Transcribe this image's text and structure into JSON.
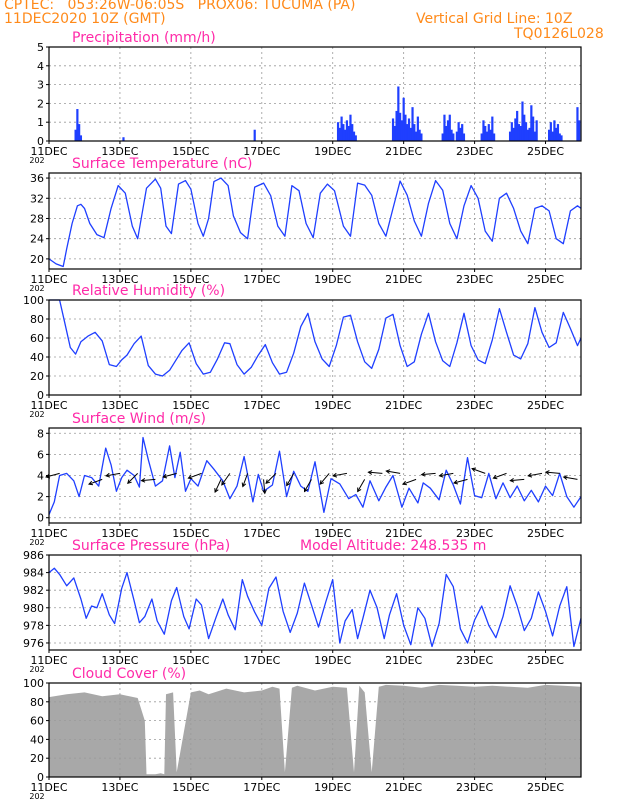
{
  "header": {
    "left_line1": "CPTEC:   053:26W-06:05S   PROX06: TUCUMA (PA)",
    "left_line2": "11DEC2020 10Z (GMT)",
    "right_line1": "Vertical Grid Line: 10Z",
    "right_line2": "TQ0126L028",
    "text_color": "#ff8a1a"
  },
  "theme": {
    "line_color": "#1f3fff",
    "title_color": "#ff2aa8",
    "arrow_color": "#000000",
    "cloud_color": "#a8a8a8",
    "grid_color": "#9a9a9a"
  },
  "x_axis": {
    "ticks": [
      "11DEC",
      "13DEC",
      "15DEC",
      "17DEC",
      "19DEC",
      "21DEC",
      "23DEC",
      "25DEC"
    ],
    "tick_days": [
      0,
      2,
      4,
      6,
      8,
      10,
      12,
      14
    ],
    "range_days": [
      0,
      15
    ],
    "year_label": "202"
  },
  "panels": {
    "precip": {
      "title": "Precipitation (mm/h)",
      "yticks": [
        "0",
        "1",
        "2",
        "3",
        "4",
        "5"
      ],
      "ytick_vals": [
        0,
        1,
        2,
        3,
        4,
        5
      ],
      "ylim": [
        0,
        5
      ]
    },
    "temp": {
      "title": "Surface Temperature (nC)",
      "yticks": [
        "20",
        "24",
        "28",
        "32",
        "36"
      ],
      "ytick_vals": [
        20,
        24,
        28,
        32,
        36
      ],
      "ylim": [
        18,
        37
      ]
    },
    "rh": {
      "title": "Relative Humidity (%)",
      "yticks": [
        "0",
        "20",
        "40",
        "60",
        "80",
        "100"
      ],
      "ytick_vals": [
        0,
        20,
        40,
        60,
        80,
        100
      ],
      "ylim": [
        0,
        100
      ]
    },
    "wind": {
      "title": "Surface Wind (m/s)",
      "yticks": [
        "0",
        "2",
        "4",
        "6",
        "8"
      ],
      "ytick_vals": [
        0,
        2,
        4,
        6,
        8
      ],
      "ylim": [
        -0.5,
        8.5
      ]
    },
    "pres": {
      "title": "Surface Pressure (hPa)",
      "subtitle": "Model Altitude: 248.535 m",
      "yticks": [
        "976",
        "978",
        "980",
        "982",
        "984",
        "986"
      ],
      "ytick_vals": [
        976,
        978,
        980,
        982,
        984,
        986
      ],
      "ylim": [
        975.2,
        986
      ]
    },
    "cloud": {
      "title": "Cloud Cover (%)",
      "yticks": [
        "0",
        "20",
        "40",
        "60",
        "80",
        "100"
      ],
      "ytick_vals": [
        0,
        20,
        40,
        60,
        80,
        100
      ],
      "ylim": [
        0,
        100
      ]
    }
  },
  "chart_data": [
    {
      "type": "bar",
      "title": "Precipitation (mm/h)",
      "ylim": [
        0,
        5
      ],
      "x_unit": "days since 11DEC 10Z",
      "x": [
        0.75,
        0.8,
        0.85,
        0.9,
        2.1,
        5.8,
        8.15,
        8.2,
        8.25,
        8.3,
        8.35,
        8.4,
        8.45,
        8.5,
        8.55,
        8.6,
        8.65,
        9.7,
        9.75,
        9.8,
        9.85,
        9.9,
        9.95,
        10.0,
        10.05,
        10.1,
        10.15,
        10.2,
        10.25,
        10.3,
        10.35,
        10.4,
        10.45,
        10.5,
        11.1,
        11.15,
        11.2,
        11.25,
        11.3,
        11.35,
        11.4,
        11.5,
        11.55,
        11.6,
        11.65,
        11.7,
        12.2,
        12.25,
        12.3,
        12.35,
        12.4,
        12.45,
        12.5,
        12.55,
        13.0,
        13.05,
        13.1,
        13.15,
        13.2,
        13.25,
        13.3,
        13.35,
        13.4,
        13.45,
        13.5,
        13.55,
        13.6,
        13.65,
        13.7,
        13.75,
        14.1,
        14.15,
        14.2,
        14.25,
        14.3,
        14.35,
        14.4,
        14.45,
        14.9,
        14.95
      ],
      "values": [
        0.6,
        1.7,
        0.9,
        0.3,
        0.2,
        0.6,
        1.0,
        0.7,
        1.3,
        0.9,
        0.6,
        1.1,
        0.8,
        1.4,
        0.9,
        0.5,
        0.3,
        1.2,
        0.8,
        1.6,
        2.9,
        1.5,
        1.1,
        2.3,
        1.4,
        0.9,
        1.2,
        0.7,
        1.8,
        0.9,
        0.5,
        1.3,
        0.6,
        0.4,
        0.4,
        1.4,
        0.8,
        1.1,
        1.4,
        0.6,
        0.4,
        0.5,
        1.0,
        0.7,
        0.9,
        0.4,
        0.4,
        1.1,
        0.8,
        0.5,
        0.9,
        0.6,
        1.3,
        0.4,
        0.5,
        1.0,
        0.7,
        1.2,
        1.6,
        0.9,
        0.8,
        2.1,
        1.4,
        1.0,
        0.6,
        0.7,
        1.9,
        1.3,
        0.5,
        1.1,
        0.6,
        1.0,
        0.5,
        1.1,
        0.7,
        0.9,
        0.4,
        0.3,
        1.8,
        1.1
      ]
    },
    {
      "type": "line",
      "title": "Surface Temperature (nC)",
      "ylim": [
        18,
        37
      ],
      "x": [
        0,
        0.2,
        0.4,
        0.5,
        0.65,
        0.8,
        0.9,
        1.0,
        1.15,
        1.35,
        1.55,
        1.75,
        1.95,
        2.15,
        2.35,
        2.5,
        2.75,
        3.0,
        3.15,
        3.3,
        3.45,
        3.65,
        3.85,
        4.0,
        4.2,
        4.35,
        4.5,
        4.65,
        4.85,
        5.05,
        5.2,
        5.4,
        5.6,
        5.8,
        6.05,
        6.25,
        6.45,
        6.65,
        6.85,
        7.05,
        7.25,
        7.45,
        7.65,
        7.85,
        8.05,
        8.3,
        8.5,
        8.7,
        8.9,
        9.1,
        9.3,
        9.5,
        9.7,
        9.9,
        10.1,
        10.3,
        10.5,
        10.7,
        10.9,
        11.1,
        11.3,
        11.5,
        11.7,
        11.9,
        12.1,
        12.3,
        12.5,
        12.7,
        12.9,
        13.1,
        13.3,
        13.5,
        13.7,
        13.9,
        14.1,
        14.3,
        14.5,
        14.7,
        14.9,
        15.0
      ],
      "values": [
        20,
        19,
        18.5,
        22,
        27,
        30.5,
        30.8,
        30,
        27,
        24.8,
        24.2,
        30,
        34.5,
        33,
        26.5,
        24,
        34,
        35.8,
        34,
        26.5,
        25,
        34.8,
        35.5,
        33.8,
        27,
        24.5,
        28,
        35.3,
        36,
        34.5,
        28.5,
        25.2,
        24,
        34.2,
        35,
        32.5,
        26.5,
        24.5,
        34.5,
        33.5,
        27,
        24.2,
        33,
        34.8,
        33.5,
        26.5,
        24.5,
        35,
        34.6,
        32.6,
        27,
        24.5,
        30,
        35.4,
        32.6,
        27.5,
        24.5,
        31,
        35.5,
        33.6,
        27,
        24,
        30.5,
        34.5,
        32,
        25.5,
        23.5,
        32,
        33,
        30,
        25.5,
        23,
        30,
        30.5,
        29.5,
        24,
        23,
        29.5,
        30.5,
        30
      ]
    },
    {
      "type": "line",
      "title": "Relative Humidity (%)",
      "ylim": [
        0,
        100
      ],
      "x": [
        0,
        0.3,
        0.45,
        0.6,
        0.75,
        0.9,
        1.1,
        1.3,
        1.5,
        1.7,
        1.9,
        2.05,
        2.2,
        2.4,
        2.6,
        2.8,
        3.0,
        3.2,
        3.4,
        3.55,
        3.75,
        3.95,
        4.15,
        4.35,
        4.55,
        4.75,
        4.95,
        5.1,
        5.3,
        5.5,
        5.7,
        5.9,
        6.1,
        6.3,
        6.5,
        6.7,
        6.9,
        7.1,
        7.3,
        7.5,
        7.7,
        7.9,
        8.1,
        8.3,
        8.5,
        8.7,
        8.9,
        9.1,
        9.3,
        9.5,
        9.7,
        9.9,
        10.1,
        10.3,
        10.5,
        10.7,
        10.9,
        11.1,
        11.3,
        11.5,
        11.7,
        11.9,
        12.1,
        12.3,
        12.5,
        12.7,
        12.9,
        13.1,
        13.3,
        13.5,
        13.7,
        13.9,
        14.1,
        14.3,
        14.5,
        14.7,
        14.9,
        15.0
      ],
      "values": [
        100,
        100,
        75,
        50,
        43,
        56,
        62,
        66,
        57,
        32,
        30,
        37,
        42,
        54,
        62,
        31,
        22,
        20,
        26,
        35,
        47,
        55,
        33,
        22,
        24,
        38,
        55,
        54,
        32,
        22,
        29,
        42,
        53,
        34,
        22,
        24,
        44,
        72,
        86,
        56,
        38,
        30,
        52,
        82,
        84,
        56,
        35,
        28,
        48,
        81,
        85,
        52,
        30,
        35,
        64,
        86,
        56,
        36,
        30,
        55,
        86,
        52,
        37,
        33,
        58,
        91,
        66,
        42,
        38,
        54,
        92,
        66,
        50,
        55,
        87,
        70,
        52,
        60
      ]
    },
    {
      "type": "line",
      "title": "Surface Wind (m/s)",
      "ylim": [
        -0.5,
        8.5
      ],
      "x": [
        0,
        0.15,
        0.3,
        0.5,
        0.7,
        0.85,
        1.0,
        1.2,
        1.4,
        1.6,
        1.75,
        1.9,
        2.05,
        2.2,
        2.4,
        2.55,
        2.65,
        2.8,
        3.0,
        3.2,
        3.4,
        3.55,
        3.7,
        3.85,
        4.0,
        4.2,
        4.45,
        4.65,
        4.9,
        5.1,
        5.3,
        5.5,
        5.75,
        5.9,
        6.05,
        6.3,
        6.5,
        6.7,
        6.9,
        7.1,
        7.3,
        7.5,
        7.75,
        7.95,
        8.2,
        8.45,
        8.65,
        8.85,
        9.05,
        9.3,
        9.5,
        9.7,
        9.95,
        10.15,
        10.4,
        10.55,
        10.75,
        11.0,
        11.2,
        11.4,
        11.6,
        11.8,
        12.0,
        12.2,
        12.4,
        12.6,
        12.8,
        13.0,
        13.2,
        13.4,
        13.6,
        13.8,
        14.0,
        14.2,
        14.4,
        14.6,
        14.8,
        15.0
      ],
      "values": [
        0.3,
        1.5,
        4.0,
        4.2,
        3.5,
        2.0,
        4.0,
        3.8,
        3.0,
        6.6,
        5.0,
        2.5,
        3.8,
        4.5,
        4.0,
        2.9,
        7.6,
        5.5,
        3.0,
        3.5,
        6.8,
        3.8,
        6.2,
        2.5,
        3.7,
        3.0,
        5.4,
        4.6,
        3.5,
        1.8,
        3.0,
        5.8,
        1.5,
        4.1,
        2.5,
        3.1,
        6.3,
        2.0,
        4.4,
        3.0,
        2.5,
        5.3,
        0.5,
        3.7,
        3.2,
        1.8,
        2.2,
        1.0,
        3.5,
        1.6,
        2.9,
        4.0,
        1.0,
        2.8,
        1.4,
        3.3,
        2.8,
        1.7,
        4.5,
        3.1,
        1.3,
        5.7,
        2.1,
        1.9,
        4.2,
        1.8,
        3.3,
        1.9,
        3.0,
        1.6,
        2.6,
        1.5,
        3.0,
        2.1,
        4.2,
        2.0,
        1.0,
        2.0
      ]
    },
    {
      "type": "line",
      "title": "Surface Pressure (hPa)",
      "ylim": [
        975.2,
        986
      ],
      "x": [
        0,
        0.15,
        0.3,
        0.5,
        0.7,
        0.9,
        1.05,
        1.2,
        1.35,
        1.5,
        1.7,
        1.85,
        2.05,
        2.2,
        2.4,
        2.55,
        2.7,
        2.9,
        3.05,
        3.25,
        3.45,
        3.6,
        3.8,
        3.95,
        4.15,
        4.3,
        4.5,
        4.7,
        4.9,
        5.05,
        5.25,
        5.45,
        5.6,
        5.8,
        6.0,
        6.2,
        6.4,
        6.6,
        6.8,
        7.0,
        7.2,
        7.4,
        7.6,
        7.8,
        8.0,
        8.2,
        8.35,
        8.55,
        8.7,
        8.85,
        9.05,
        9.25,
        9.45,
        9.6,
        9.8,
        10.0,
        10.2,
        10.4,
        10.6,
        10.8,
        11.0,
        11.2,
        11.4,
        11.6,
        11.8,
        12.0,
        12.2,
        12.4,
        12.6,
        12.8,
        13.0,
        13.2,
        13.4,
        13.6,
        13.8,
        14.0,
        14.2,
        14.4,
        14.6,
        14.8,
        15.0
      ],
      "values": [
        984.0,
        984.5,
        983.8,
        982.5,
        983.4,
        981.0,
        978.8,
        980.2,
        980.0,
        981.6,
        979.2,
        978.2,
        982.2,
        984.0,
        980.8,
        978.3,
        979.0,
        981.0,
        978.5,
        977.0,
        980.8,
        982.3,
        979.0,
        977.6,
        981.0,
        980.3,
        976.5,
        978.8,
        981.0,
        979.2,
        977.5,
        983.2,
        981.3,
        979.5,
        978.0,
        982.2,
        983.5,
        979.6,
        977.2,
        979.4,
        982.8,
        980.3,
        977.8,
        980.6,
        983.2,
        976.0,
        978.5,
        979.8,
        976.5,
        978.8,
        982.0,
        980.0,
        976.5,
        979.2,
        981.6,
        978.0,
        975.8,
        980.0,
        978.8,
        975.6,
        978.2,
        983.8,
        982.4,
        977.6,
        976.0,
        978.6,
        980.2,
        978.0,
        976.6,
        979.0,
        982.5,
        980.2,
        977.4,
        978.8,
        981.8,
        979.6,
        976.8,
        980.2,
        982.4,
        975.6,
        978.8
      ]
    },
    {
      "type": "area",
      "title": "Cloud Cover (%)",
      "ylim": [
        0,
        100
      ],
      "x": [
        0,
        0.5,
        1.0,
        1.5,
        2.0,
        2.5,
        2.7,
        2.75,
        3.0,
        3.15,
        3.25,
        3.3,
        3.5,
        3.6,
        4.0,
        4.25,
        4.5,
        5.0,
        5.5,
        6.0,
        6.3,
        6.5,
        6.65,
        6.85,
        7.0,
        7.5,
        8.0,
        8.4,
        8.6,
        8.75,
        8.9,
        9.1,
        9.3,
        9.5,
        10.0,
        10.5,
        11.0,
        11.5,
        12.0,
        12.5,
        13.0,
        13.5,
        14.0,
        14.5,
        15.0
      ],
      "values": [
        85,
        88,
        90,
        86,
        88,
        84,
        60,
        3,
        3,
        4,
        3,
        88,
        90,
        5,
        90,
        92,
        88,
        94,
        90,
        92,
        96,
        94,
        5,
        95,
        97,
        92,
        96,
        95,
        5,
        97,
        90,
        5,
        96,
        98,
        97,
        95,
        98,
        97,
        96,
        97,
        96,
        95,
        98,
        97,
        96
      ]
    },
    {
      "type": "scatter",
      "title": "Surface Wind (m/s) - direction arrows",
      "x": [
        0.3,
        1.5,
        2.0,
        2.5,
        3.0,
        3.6,
        4.3,
        4.85,
        5.1,
        5.6,
        6.05,
        6.4,
        6.9,
        7.4,
        7.9,
        8.4,
        8.9,
        9.4,
        9.9,
        10.35,
        10.9,
        11.4,
        11.8,
        12.3,
        12.9,
        13.4,
        13.9,
        14.4,
        14.9
      ],
      "directions": [
        75,
        70,
        80,
        45,
        85,
        75,
        70,
        25,
        35,
        20,
        355,
        45,
        30,
        30,
        40,
        80,
        30,
        95,
        100,
        70,
        85,
        80,
        75,
        110,
        70,
        85,
        80,
        95,
        100
      ]
    }
  ]
}
